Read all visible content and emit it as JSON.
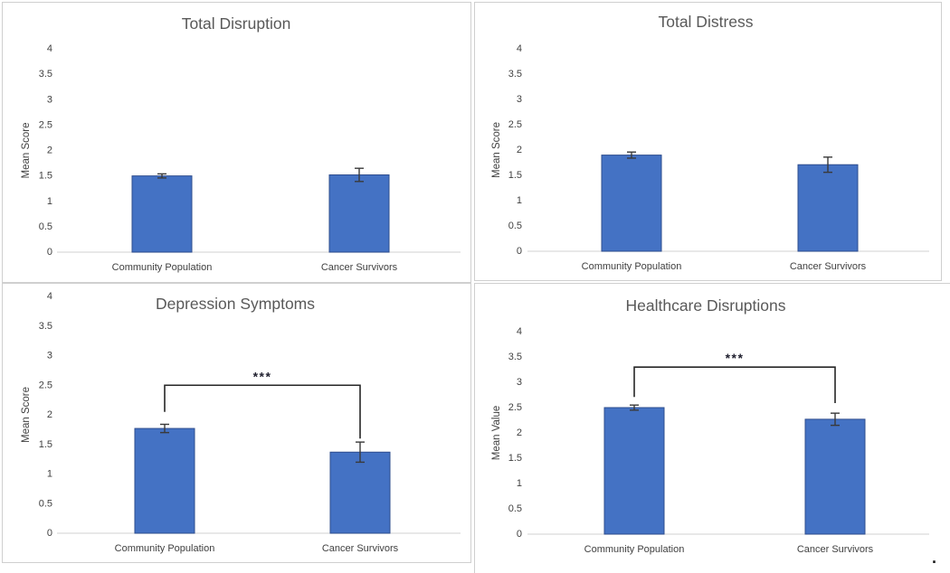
{
  "page": {
    "trailing_period": "."
  },
  "colors": {
    "bar_fill": "#4472c4",
    "bar_stroke": "#2e4d8e",
    "error_bar": "#3a3a3a",
    "axis_line": "#d9d9d9",
    "tick_text": "#404040",
    "category_text": "#404040",
    "title_text": "#595959",
    "significance_text": "#1f1f2e",
    "bracket_line": "#262626",
    "panel_border": "#cfcfcf"
  },
  "chart_data": [
    {
      "type": "bar",
      "title": "Total Disruption",
      "xlabel": "",
      "ylabel": "Mean Score",
      "categories": [
        "Community Population",
        "Cancer Survivors"
      ],
      "values": [
        1.5,
        1.52
      ],
      "errors": [
        0.04,
        0.13
      ],
      "ylim": [
        0,
        4
      ],
      "ytick_step": 0.5,
      "yticks": [
        "0",
        "0.5",
        "1",
        "1.5",
        "2",
        "2.5",
        "3",
        "3.5",
        "4"
      ],
      "grid": false,
      "legend": null,
      "significance": null
    },
    {
      "type": "bar",
      "title": "Total Distress",
      "xlabel": "",
      "ylabel": "Mean Score",
      "categories": [
        "Community Population",
        "Cancer Survivors"
      ],
      "values": [
        1.9,
        1.71
      ],
      "errors": [
        0.06,
        0.15
      ],
      "ylim": [
        0,
        4
      ],
      "ytick_step": 0.5,
      "yticks": [
        "0",
        "0.5",
        "1",
        "1.5",
        "2",
        "2.5",
        "3",
        "3.5",
        "4"
      ],
      "grid": false,
      "legend": null,
      "significance": null
    },
    {
      "type": "bar",
      "title": "Depression Symptoms",
      "xlabel": "",
      "ylabel": "Mean Score",
      "categories": [
        "Community Population",
        "Cancer Survivors"
      ],
      "values": [
        1.77,
        1.37
      ],
      "errors": [
        0.07,
        0.17
      ],
      "ylim": [
        0,
        4
      ],
      "ytick_step": 0.5,
      "yticks": [
        "0",
        "0.5",
        "1",
        "1.5",
        "2",
        "2.5",
        "3",
        "3.5",
        "4"
      ],
      "grid": false,
      "legend": null,
      "significance": {
        "label": "***",
        "level": 2.5,
        "left_tip": 2.05,
        "right_tip": 1.6
      }
    },
    {
      "type": "bar",
      "title": "Healthcare Disruptions",
      "xlabel": "",
      "ylabel": "Mean Value",
      "categories": [
        "Community Population",
        "Cancer Survivors"
      ],
      "values": [
        2.5,
        2.27
      ],
      "errors": [
        0.05,
        0.12
      ],
      "ylim": [
        0,
        4
      ],
      "ytick_step": 0.5,
      "yticks": [
        "0",
        "0.5",
        "1",
        "1.5",
        "2",
        "2.5",
        "3",
        "3.5",
        "4"
      ],
      "grid": false,
      "legend": null,
      "significance": {
        "label": "***",
        "level": 3.3,
        "left_tip": 2.71,
        "right_tip": 2.59
      }
    }
  ]
}
